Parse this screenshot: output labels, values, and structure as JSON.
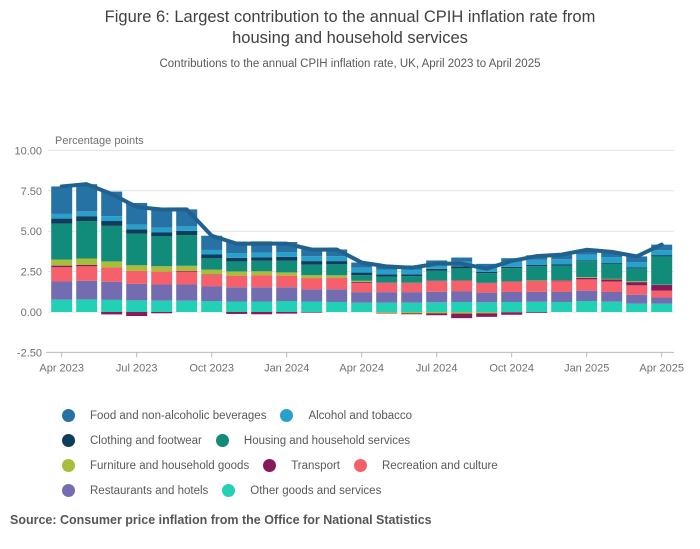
{
  "header": {
    "title_lines": [
      "Figure 6: Largest contribution to the annual CPIH inflation rate from",
      "housing and household services"
    ],
    "subtitle": "Contributions to the annual CPIH inflation rate, UK, April 2023 to April 2025"
  },
  "footer": {
    "source": "Source: Consumer price inflation from the Office for National Statistics"
  },
  "chart_data": {
    "type": "bar",
    "stacked": true,
    "title": "Figure 6: Largest contribution to the annual CPIH inflation rate from housing and household services",
    "subtitle": "Contributions to the annual CPIH inflation rate, UK, April 2023 to April 2025",
    "ylabel": "Percentage points",
    "xlabel": "",
    "ylim": [
      -2.5,
      10
    ],
    "grid": true,
    "legend_position": "bottom",
    "y_ticks": [
      {
        "value": 10,
        "label": "10.00"
      },
      {
        "value": 7.5,
        "label": "7.50"
      },
      {
        "value": 5,
        "label": "5.00"
      },
      {
        "value": 2.5,
        "label": "2.50"
      },
      {
        "value": 0,
        "label": "0.00"
      },
      {
        "value": -2.5,
        "label": "-2.50"
      }
    ],
    "x_tick_every": 3,
    "categories": [
      "Apr 2023",
      "May 2023",
      "Jun 2023",
      "Jul 2023",
      "Aug 2023",
      "Sep 2023",
      "Oct 2023",
      "Nov 2023",
      "Dec 2023",
      "Jan 2024",
      "Feb 2024",
      "Mar 2024",
      "Apr 2024",
      "May 2024",
      "Jun 2024",
      "Jul 2024",
      "Aug 2024",
      "Sep 2024",
      "Oct 2024",
      "Nov 2024",
      "Dec 2024",
      "Jan 2025",
      "Feb 2025",
      "Mar 2025",
      "Apr 2025"
    ],
    "stack_order": [
      "other",
      "restaurants",
      "recreation",
      "transport",
      "furniture",
      "housing",
      "clothing",
      "alcohol",
      "food"
    ],
    "negative_stack_order": [
      "furniture",
      "transport"
    ],
    "series": [
      {
        "key": "food",
        "name": "Food and non-alcoholic beverages",
        "color": "#2772a4",
        "values": [
          1.7,
          1.68,
          1.52,
          1.35,
          1.2,
          1.05,
          0.88,
          0.72,
          0.7,
          0.62,
          0.45,
          0.42,
          0.32,
          0.28,
          0.25,
          0.22,
          0.25,
          0.2,
          0.22,
          0.28,
          0.28,
          0.3,
          0.32,
          0.35,
          0.35
        ]
      },
      {
        "key": "alcohol",
        "name": "Alcohol and tobacco",
        "color": "#27a0cc",
        "values": [
          0.29,
          0.3,
          0.3,
          0.28,
          0.28,
          0.28,
          0.28,
          0.28,
          0.28,
          0.3,
          0.3,
          0.3,
          0.3,
          0.3,
          0.3,
          0.3,
          0.3,
          0.3,
          0.32,
          0.32,
          0.33,
          0.35,
          0.35,
          0.33,
          0.3
        ]
      },
      {
        "key": "clothing",
        "name": "Clothing and footwear",
        "color": "#0f3d5c",
        "values": [
          0.31,
          0.3,
          0.3,
          0.28,
          0.26,
          0.26,
          0.24,
          0.22,
          0.22,
          0.24,
          0.22,
          0.2,
          0.16,
          0.14,
          0.12,
          0.12,
          0.12,
          0.08,
          0.08,
          0.08,
          0.08,
          0.06,
          0.05,
          0.06,
          0.08
        ]
      },
      {
        "key": "housing",
        "name": "Housing and household services",
        "color": "#118c7b",
        "values": [
          2.23,
          2.32,
          2.2,
          1.95,
          1.85,
          1.9,
          0.7,
          0.62,
          0.65,
          0.72,
          0.65,
          0.68,
          0.35,
          0.38,
          0.4,
          0.62,
          0.75,
          0.6,
          0.82,
          0.88,
          0.88,
          0.98,
          0.95,
          0.8,
          1.75
        ]
      },
      {
        "key": "furniture",
        "name": "Furniture and household goods",
        "color": "#a8bd3a",
        "values": [
          0.37,
          0.4,
          0.38,
          0.35,
          0.33,
          0.32,
          0.3,
          0.26,
          0.24,
          0.2,
          0.18,
          0.15,
          0.08,
          -0.06,
          -0.08,
          -0.08,
          -0.1,
          -0.08,
          -0.02,
          0.02,
          0.02,
          0.04,
          0.04,
          0.05,
          0.02
        ]
      },
      {
        "key": "transport",
        "name": "Transport",
        "color": "#871a5b",
        "values": [
          0.1,
          0.08,
          -0.15,
          -0.25,
          -0.08,
          0.04,
          0.02,
          -0.12,
          -0.14,
          -0.1,
          -0.04,
          0.02,
          0.06,
          -0.03,
          -0.06,
          -0.12,
          -0.28,
          -0.22,
          -0.15,
          -0.05,
          0.06,
          0.1,
          0.12,
          0.2,
          0.35
        ]
      },
      {
        "key": "recreation",
        "name": "Recreation and culture",
        "color": "#f5606a",
        "values": [
          0.88,
          0.9,
          0.88,
          0.8,
          0.8,
          0.8,
          0.72,
          0.72,
          0.75,
          0.72,
          0.7,
          0.7,
          0.56,
          0.58,
          0.58,
          0.68,
          0.68,
          0.6,
          0.65,
          0.68,
          0.66,
          0.7,
          0.65,
          0.58,
          0.42
        ]
      },
      {
        "key": "restaurants",
        "name": "Restaurants and hotels",
        "color": "#746cb1",
        "values": [
          1.13,
          1.15,
          1.12,
          1.02,
          1.0,
          1.0,
          0.9,
          0.88,
          0.88,
          0.85,
          0.75,
          0.78,
          0.65,
          0.65,
          0.65,
          0.65,
          0.65,
          0.6,
          0.62,
          0.62,
          0.62,
          0.64,
          0.6,
          0.55,
          0.38
        ]
      },
      {
        "key": "other",
        "name": "Other goods and services",
        "color": "#22d0b6",
        "values": [
          0.76,
          0.78,
          0.75,
          0.72,
          0.7,
          0.7,
          0.68,
          0.65,
          0.65,
          0.68,
          0.65,
          0.62,
          0.58,
          0.58,
          0.58,
          0.6,
          0.62,
          0.6,
          0.62,
          0.63,
          0.62,
          0.68,
          0.64,
          0.52,
          0.52
        ]
      }
    ],
    "line": {
      "name": "Annual CPIH inflation rate (total)",
      "color": "#21618e",
      "values": [
        7.77,
        7.91,
        7.3,
        6.5,
        6.34,
        6.35,
        4.72,
        4.23,
        4.23,
        4.23,
        3.86,
        3.87,
        3.06,
        2.82,
        2.74,
        2.99,
        2.99,
        2.68,
        3.16,
        3.46,
        3.55,
        3.85,
        3.72,
        3.44,
        4.17
      ]
    },
    "legend_rows": [
      [
        "food",
        "alcohol"
      ],
      [
        "clothing",
        "housing"
      ],
      [
        "furniture",
        "transport",
        "recreation"
      ],
      [
        "restaurants",
        "other"
      ]
    ]
  }
}
